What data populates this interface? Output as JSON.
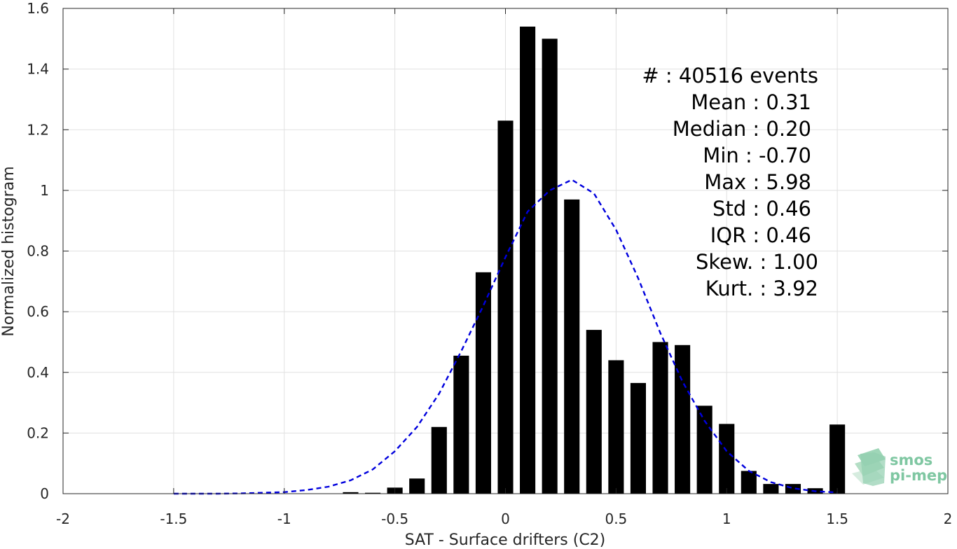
{
  "chart_data": {
    "type": "bar",
    "xlabel": "SAT - Surface drifters (C2)",
    "ylabel": "Normalized histogram",
    "xlim": [
      -2,
      2
    ],
    "ylim": [
      0,
      1.6
    ],
    "grid": true,
    "xticks": [
      -2,
      -1.5,
      -1,
      -0.5,
      0,
      0.5,
      1,
      1.5,
      2
    ],
    "xtick_labels": [
      "-2",
      "-1.5",
      "-1",
      "-0.5",
      "0",
      "0.5",
      "1",
      "1.5",
      "2"
    ],
    "yticks": [
      0,
      0.2,
      0.4,
      0.6,
      0.8,
      1.0,
      1.2,
      1.4,
      1.6
    ],
    "ytick_labels": [
      "0",
      "0.2",
      "0.4",
      "0.6",
      "0.8",
      "1",
      "1.2",
      "1.4",
      "1.6"
    ],
    "bar_width": 0.07,
    "bar_color": "#000000",
    "bars": {
      "x": [
        -0.7,
        -0.6,
        -0.5,
        -0.4,
        -0.3,
        -0.2,
        -0.1,
        0.0,
        0.1,
        0.2,
        0.3,
        0.4,
        0.5,
        0.6,
        0.7,
        0.8,
        0.9,
        1.0,
        1.1,
        1.2,
        1.3,
        1.4,
        1.5
      ],
      "values": [
        0.005,
        0.003,
        0.02,
        0.05,
        0.22,
        0.455,
        0.73,
        1.23,
        1.54,
        1.5,
        0.97,
        0.54,
        0.44,
        0.365,
        0.5,
        0.49,
        0.29,
        0.23,
        0.075,
        0.032,
        0.032,
        0.018,
        0.228
      ]
    },
    "fit_curve": {
      "style": "dashed",
      "color": "#0000dd",
      "x": [
        -1.5,
        -1.4,
        -1.3,
        -1.2,
        -1.1,
        -1.0,
        -0.9,
        -0.8,
        -0.7,
        -0.6,
        -0.5,
        -0.4,
        -0.3,
        -0.2,
        -0.1,
        0.0,
        0.1,
        0.2,
        0.3,
        0.4,
        0.5,
        0.6,
        0.7,
        0.8,
        0.9,
        1.0,
        1.1,
        1.2,
        1.3,
        1.4,
        1.5
      ],
      "y": [
        0.0,
        0.0,
        0.0,
        0.001,
        0.003,
        0.005,
        0.012,
        0.023,
        0.044,
        0.08,
        0.14,
        0.22,
        0.33,
        0.47,
        0.62,
        0.78,
        0.93,
        1.0,
        1.035,
        0.99,
        0.87,
        0.71,
        0.53,
        0.37,
        0.24,
        0.14,
        0.075,
        0.038,
        0.018,
        0.008,
        0.004
      ]
    }
  },
  "stats": [
    {
      "label": "#  : 40516 events"
    },
    {
      "label": "Mean : 0.31"
    },
    {
      "label": "Median : 0.20"
    },
    {
      "label": "Min : -0.70"
    },
    {
      "label": "Max : 5.98"
    },
    {
      "label": "Std : 0.46"
    },
    {
      "label": "IQR : 0.46"
    },
    {
      "label": "Skew. : 1.00"
    },
    {
      "label": "Kurt. : 3.92"
    }
  ],
  "logo": {
    "line1": "smos",
    "line2": "pi-mep",
    "color": "#7fc7a2"
  }
}
